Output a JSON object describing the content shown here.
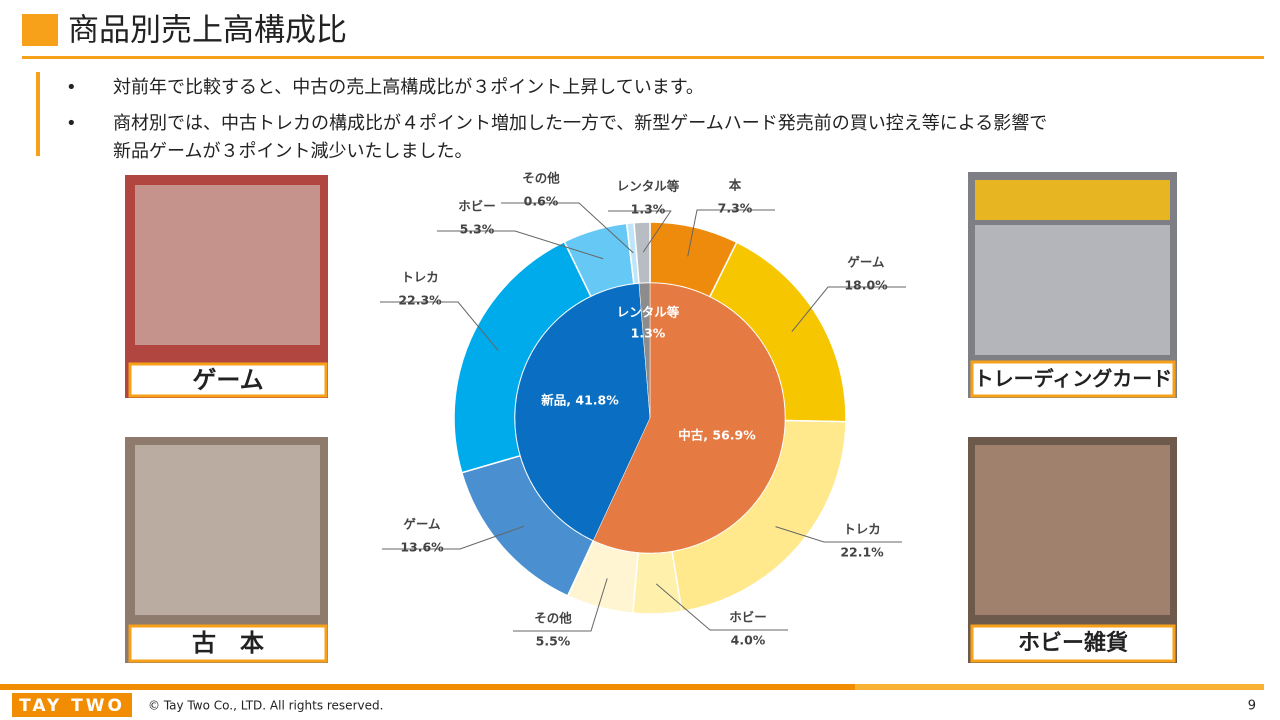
{
  "header": {
    "title": "商品別売上高構成比"
  },
  "bullets": [
    [
      "対前年で比較すると、中古の売上高構成比が３ポイント上昇しています。"
    ],
    [
      "商材別では、中古トレカの構成比が４ポイント増加した一方で、新型ゲームハード発売前の買い控え等による影響で",
      "新品ゲームが３ポイント減少いたしました。"
    ]
  ],
  "photos": [
    "ゲーム",
    "古　本",
    "トレーディングカード",
    "ホビー雑貨"
  ],
  "chart_data": {
    "type": "donut",
    "inner": {
      "categories": [
        null,
        null,
        "レンタル等"
      ],
      "values": [
        56.9,
        41.8,
        1.3
      ],
      "value_labels": [
        "中古, 56.9%",
        "新品, 41.8%",
        "1.3%"
      ],
      "colors": [
        "#e57a43",
        "#0a6fc2",
        "#8c8c8c"
      ]
    },
    "outer": {
      "categories": [
        "本",
        "ゲーム",
        "トレカ",
        "ホビー",
        "その他",
        "ゲーム",
        "トレカ",
        "ホビー",
        "その他",
        "レンタル等"
      ],
      "values": [
        7.3,
        18.0,
        22.1,
        4.0,
        5.5,
        13.6,
        22.3,
        5.3,
        0.6,
        1.3
      ],
      "value_labels": [
        "7.3%",
        "18.0%",
        "22.1%",
        "4.0%",
        "5.5%",
        "13.6%",
        "22.3%",
        "5.3%",
        "0.6%",
        "1.3%"
      ],
      "colors": [
        "#ee8a0c",
        "#f6c600",
        "#ffe98c",
        "#fff0ac",
        "#fff5d2",
        "#4a90d0",
        "#00abec",
        "#66c9f5",
        "#bfe6f8",
        "#b8bdc3"
      ]
    }
  },
  "footer": {
    "logo": "TAY TWO",
    "copyright": "© Tay Two Co., LTD. All rights reserved.",
    "page": "9"
  }
}
